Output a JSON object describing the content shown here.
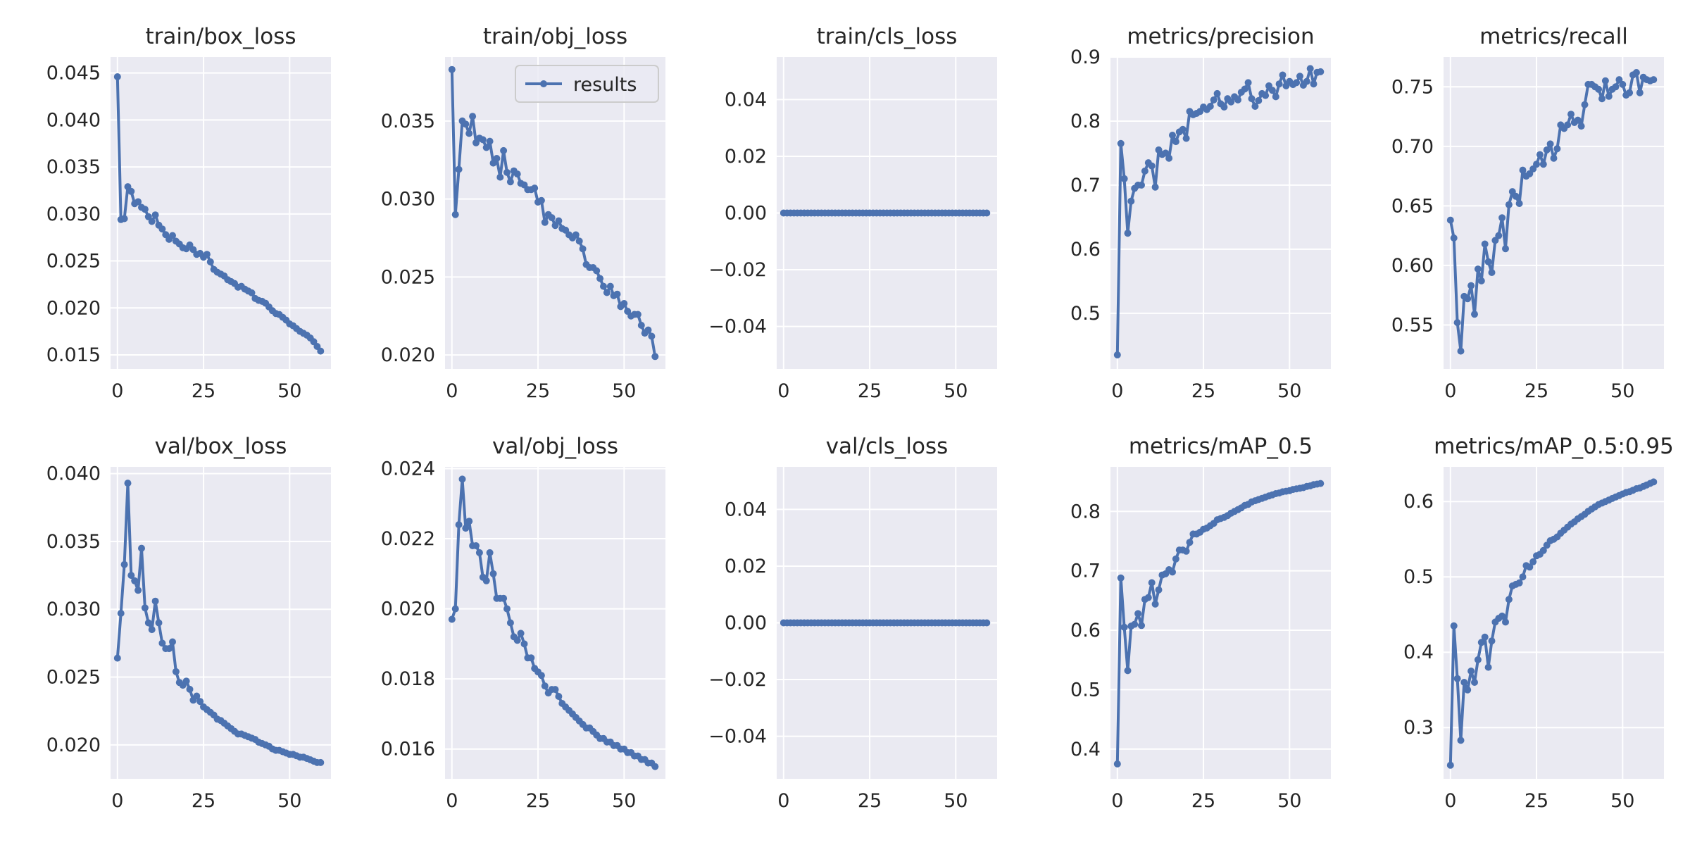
{
  "figure": {
    "legend_label": "results",
    "colors": {
      "line": "#4c72b0",
      "panel_bg": "#eaeaf2",
      "grid": "#ffffff",
      "text": "#262626"
    }
  },
  "chart_data": [
    {
      "type": "line",
      "title": "train/box_loss",
      "xlim": [
        -2,
        62
      ],
      "ylim": [
        0.0135,
        0.0467
      ],
      "xticks": [
        0,
        25,
        50
      ],
      "yticks": [
        0.015,
        0.02,
        0.025,
        0.03,
        0.035,
        0.04,
        0.045
      ],
      "ytick_labels": [
        "0.015",
        "0.020",
        "0.025",
        "0.030",
        "0.035",
        "0.040",
        "0.045"
      ],
      "legend": false,
      "series": [
        {
          "name": "results",
          "values": [
            0.0446,
            0.0294,
            0.0295,
            0.0329,
            0.0324,
            0.0311,
            0.0313,
            0.0307,
            0.0305,
            0.0297,
            0.0292,
            0.0299,
            0.0288,
            0.0284,
            0.0278,
            0.0273,
            0.0277,
            0.0271,
            0.0268,
            0.0264,
            0.0263,
            0.0267,
            0.0262,
            0.0257,
            0.0258,
            0.0254,
            0.0257,
            0.0249,
            0.0241,
            0.0238,
            0.0236,
            0.0234,
            0.023,
            0.0228,
            0.0226,
            0.0222,
            0.0223,
            0.022,
            0.0218,
            0.0216,
            0.021,
            0.0208,
            0.0207,
            0.0205,
            0.0201,
            0.0197,
            0.0194,
            0.0193,
            0.019,
            0.0187,
            0.0183,
            0.0181,
            0.0178,
            0.0175,
            0.0173,
            0.0171,
            0.0168,
            0.0164,
            0.0159,
            0.0154
          ]
        }
      ]
    },
    {
      "type": "line",
      "title": "train/obj_loss",
      "xlim": [
        -2,
        62
      ],
      "ylim": [
        0.0191,
        0.0391
      ],
      "xticks": [
        0,
        25,
        50
      ],
      "yticks": [
        0.02,
        0.025,
        0.03,
        0.035
      ],
      "ytick_labels": [
        "0.020",
        "0.025",
        "0.030",
        "0.035"
      ],
      "legend": true,
      "series": [
        {
          "name": "results",
          "values": [
            0.0383,
            0.029,
            0.0319,
            0.035,
            0.0348,
            0.0342,
            0.0353,
            0.0336,
            0.0339,
            0.0338,
            0.0333,
            0.0337,
            0.0323,
            0.0326,
            0.0314,
            0.0331,
            0.0317,
            0.0311,
            0.0318,
            0.0316,
            0.031,
            0.0309,
            0.0306,
            0.0306,
            0.0307,
            0.0298,
            0.0299,
            0.0285,
            0.029,
            0.0288,
            0.0283,
            0.0286,
            0.0281,
            0.028,
            0.0277,
            0.0275,
            0.0277,
            0.0273,
            0.0268,
            0.0258,
            0.0256,
            0.0256,
            0.0254,
            0.0249,
            0.0244,
            0.024,
            0.0244,
            0.0238,
            0.0239,
            0.0231,
            0.0233,
            0.0228,
            0.0225,
            0.0226,
            0.0226,
            0.0219,
            0.0214,
            0.0216,
            0.0212,
            0.0199
          ]
        }
      ]
    },
    {
      "type": "line",
      "title": "train/cls_loss",
      "xlim": [
        -2,
        62
      ],
      "ylim": [
        -0.055,
        0.055
      ],
      "xticks": [
        0,
        25,
        50
      ],
      "yticks": [
        -0.04,
        -0.02,
        0.0,
        0.02,
        0.04
      ],
      "ytick_labels": [
        "−0.04",
        "−0.02",
        "0.00",
        "0.02",
        "0.04"
      ],
      "legend": false,
      "series": [
        {
          "name": "results",
          "constant": 0,
          "n": 60
        }
      ]
    },
    {
      "type": "line",
      "title": "metrics/precision",
      "xlim": [
        -2,
        62
      ],
      "ylim": [
        0.413,
        0.9
      ],
      "xticks": [
        0,
        25,
        50
      ],
      "yticks": [
        0.5,
        0.6,
        0.7,
        0.8,
        0.9
      ],
      "ytick_labels": [
        "0.5",
        "0.6",
        "0.7",
        "0.8",
        "0.9"
      ],
      "legend": false,
      "series": [
        {
          "name": "results",
          "values": [
            0.435,
            0.765,
            0.71,
            0.625,
            0.675,
            0.695,
            0.7,
            0.7,
            0.722,
            0.735,
            0.73,
            0.697,
            0.755,
            0.748,
            0.75,
            0.742,
            0.778,
            0.768,
            0.783,
            0.787,
            0.773,
            0.815,
            0.81,
            0.812,
            0.815,
            0.822,
            0.818,
            0.823,
            0.833,
            0.843,
            0.827,
            0.822,
            0.835,
            0.83,
            0.838,
            0.833,
            0.845,
            0.85,
            0.86,
            0.835,
            0.823,
            0.832,
            0.843,
            0.84,
            0.855,
            0.848,
            0.838,
            0.858,
            0.872,
            0.855,
            0.862,
            0.857,
            0.86,
            0.87,
            0.856,
            0.862,
            0.882,
            0.858,
            0.876,
            0.877
          ]
        }
      ]
    },
    {
      "type": "line",
      "title": "metrics/recall",
      "xlim": [
        -2,
        62
      ],
      "ylim": [
        0.513,
        0.775
      ],
      "xticks": [
        0,
        25,
        50
      ],
      "yticks": [
        0.55,
        0.6,
        0.65,
        0.7,
        0.75
      ],
      "ytick_labels": [
        "0.55",
        "0.60",
        "0.65",
        "0.70",
        "0.75"
      ],
      "legend": false,
      "series": [
        {
          "name": "results",
          "values": [
            0.638,
            0.623,
            0.552,
            0.528,
            0.574,
            0.572,
            0.583,
            0.559,
            0.597,
            0.587,
            0.618,
            0.603,
            0.594,
            0.621,
            0.625,
            0.64,
            0.614,
            0.651,
            0.662,
            0.658,
            0.652,
            0.68,
            0.675,
            0.677,
            0.681,
            0.685,
            0.693,
            0.685,
            0.697,
            0.702,
            0.69,
            0.698,
            0.718,
            0.715,
            0.718,
            0.727,
            0.72,
            0.722,
            0.717,
            0.735,
            0.752,
            0.752,
            0.75,
            0.748,
            0.74,
            0.755,
            0.742,
            0.748,
            0.75,
            0.756,
            0.752,
            0.743,
            0.745,
            0.76,
            0.762,
            0.745,
            0.758,
            0.756,
            0.755,
            0.756
          ]
        }
      ]
    },
    {
      "type": "line",
      "title": "val/box_loss",
      "xlim": [
        -2,
        62
      ],
      "ylim": [
        0.0175,
        0.0405
      ],
      "xticks": [
        0,
        25,
        50
      ],
      "yticks": [
        0.02,
        0.025,
        0.03,
        0.035,
        0.04
      ],
      "ytick_labels": [
        "0.020",
        "0.025",
        "0.030",
        "0.035",
        "0.040"
      ],
      "legend": false,
      "series": [
        {
          "name": "results",
          "values": [
            0.0264,
            0.0297,
            0.0333,
            0.0393,
            0.0325,
            0.0321,
            0.0314,
            0.0345,
            0.0301,
            0.029,
            0.0285,
            0.0306,
            0.029,
            0.0275,
            0.0271,
            0.0271,
            0.0276,
            0.0254,
            0.0246,
            0.0244,
            0.0247,
            0.0241,
            0.0233,
            0.0236,
            0.0232,
            0.0228,
            0.0226,
            0.0224,
            0.0222,
            0.0219,
            0.0218,
            0.0216,
            0.0214,
            0.0212,
            0.021,
            0.0208,
            0.0208,
            0.0207,
            0.0206,
            0.0205,
            0.0204,
            0.0202,
            0.0201,
            0.02,
            0.0199,
            0.0197,
            0.0196,
            0.0196,
            0.0195,
            0.0194,
            0.0193,
            0.0193,
            0.0192,
            0.0191,
            0.0191,
            0.019,
            0.0189,
            0.0188,
            0.0187,
            0.0187
          ]
        }
      ]
    },
    {
      "type": "line",
      "title": "val/obj_loss",
      "xlim": [
        -2,
        62
      ],
      "ylim": [
        0.01515,
        0.02405
      ],
      "xticks": [
        0,
        25,
        50
      ],
      "yticks": [
        0.016,
        0.018,
        0.02,
        0.022,
        0.024
      ],
      "ytick_labels": [
        "0.016",
        "0.018",
        "0.020",
        "0.022",
        "0.024"
      ],
      "legend": false,
      "series": [
        {
          "name": "results",
          "values": [
            0.0197,
            0.02,
            0.0224,
            0.0237,
            0.0223,
            0.0225,
            0.0218,
            0.0218,
            0.0216,
            0.0209,
            0.0208,
            0.0216,
            0.021,
            0.0203,
            0.0203,
            0.0203,
            0.02,
            0.0196,
            0.0192,
            0.0191,
            0.0193,
            0.019,
            0.0186,
            0.0186,
            0.0183,
            0.0182,
            0.0181,
            0.0178,
            0.0176,
            0.0177,
            0.0177,
            0.0175,
            0.0173,
            0.0172,
            0.0171,
            0.017,
            0.0169,
            0.0168,
            0.0167,
            0.0166,
            0.0166,
            0.0165,
            0.0164,
            0.0163,
            0.0163,
            0.0162,
            0.0162,
            0.0161,
            0.0161,
            0.016,
            0.016,
            0.0159,
            0.0159,
            0.0158,
            0.0158,
            0.0157,
            0.0157,
            0.0156,
            0.0156,
            0.0155
          ]
        }
      ]
    },
    {
      "type": "line",
      "title": "val/cls_loss",
      "xlim": [
        -2,
        62
      ],
      "ylim": [
        -0.055,
        0.055
      ],
      "xticks": [
        0,
        25,
        50
      ],
      "yticks": [
        -0.04,
        -0.02,
        0.0,
        0.02,
        0.04
      ],
      "ytick_labels": [
        "−0.04",
        "−0.02",
        "0.00",
        "0.02",
        "0.04"
      ],
      "legend": false,
      "series": [
        {
          "name": "results",
          "constant": 0,
          "n": 60
        }
      ]
    },
    {
      "type": "line",
      "title": "metrics/mAP_0.5",
      "xlim": [
        -2,
        62
      ],
      "ylim": [
        0.35,
        0.875
      ],
      "xticks": [
        0,
        25,
        50
      ],
      "yticks": [
        0.4,
        0.5,
        0.6,
        0.7,
        0.8
      ],
      "ytick_labels": [
        "0.4",
        "0.5",
        "0.6",
        "0.7",
        "0.8"
      ],
      "legend": false,
      "series": [
        {
          "name": "results",
          "values": [
            0.375,
            0.688,
            0.605,
            0.532,
            0.607,
            0.61,
            0.628,
            0.608,
            0.652,
            0.655,
            0.68,
            0.644,
            0.668,
            0.693,
            0.695,
            0.702,
            0.698,
            0.72,
            0.735,
            0.735,
            0.733,
            0.748,
            0.762,
            0.762,
            0.765,
            0.77,
            0.772,
            0.776,
            0.78,
            0.786,
            0.788,
            0.79,
            0.793,
            0.797,
            0.8,
            0.803,
            0.806,
            0.81,
            0.812,
            0.816,
            0.818,
            0.82,
            0.822,
            0.824,
            0.826,
            0.828,
            0.83,
            0.831,
            0.833,
            0.834,
            0.835,
            0.837,
            0.838,
            0.839,
            0.84,
            0.842,
            0.843,
            0.845,
            0.846,
            0.847
          ]
        }
      ]
    },
    {
      "type": "line",
      "title": "metrics/mAP_0.5:0.95",
      "xlim": [
        -2,
        62
      ],
      "ylim": [
        0.232,
        0.646
      ],
      "xticks": [
        0,
        25,
        50
      ],
      "yticks": [
        0.3,
        0.4,
        0.5,
        0.6
      ],
      "ytick_labels": [
        "0.3",
        "0.4",
        "0.5",
        "0.6"
      ],
      "legend": false,
      "series": [
        {
          "name": "results",
          "values": [
            0.25,
            0.435,
            0.365,
            0.283,
            0.36,
            0.35,
            0.375,
            0.36,
            0.39,
            0.413,
            0.42,
            0.38,
            0.415,
            0.44,
            0.445,
            0.448,
            0.44,
            0.47,
            0.488,
            0.49,
            0.492,
            0.5,
            0.515,
            0.513,
            0.52,
            0.528,
            0.53,
            0.535,
            0.542,
            0.548,
            0.55,
            0.553,
            0.558,
            0.562,
            0.566,
            0.57,
            0.573,
            0.577,
            0.58,
            0.583,
            0.587,
            0.59,
            0.593,
            0.596,
            0.598,
            0.6,
            0.602,
            0.604,
            0.606,
            0.608,
            0.61,
            0.612,
            0.613,
            0.615,
            0.617,
            0.618,
            0.62,
            0.622,
            0.624,
            0.626
          ]
        }
      ]
    }
  ]
}
